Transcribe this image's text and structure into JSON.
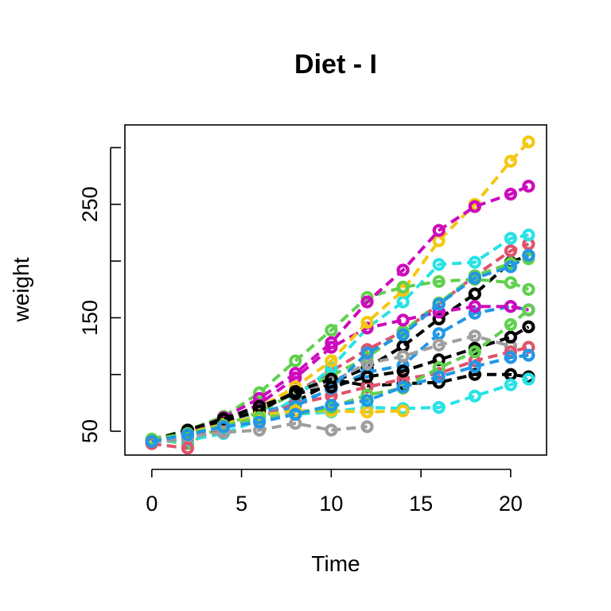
{
  "chart_data": {
    "type": "line",
    "title": "Diet - I",
    "xlabel": "Time",
    "ylabel": "weight",
    "xlim": [
      -1.5,
      22
    ],
    "ylim": [
      29,
      320
    ],
    "xticks": [
      0,
      5,
      10,
      15,
      20
    ],
    "yticks": [
      50,
      100,
      150,
      200,
      250,
      300
    ],
    "ytick_labels": [
      "50",
      "",
      "150",
      "",
      "250",
      ""
    ],
    "x": [
      0,
      2,
      4,
      6,
      8,
      10,
      12,
      14,
      16,
      18,
      20,
      21
    ],
    "grid": false,
    "legend": "none",
    "series": [
      {
        "color": "#000000",
        "values": [
          42,
          51,
          59,
          64,
          76,
          93,
          106,
          125,
          149,
          171,
          199,
          205
        ]
      },
      {
        "color": "#DF536B",
        "values": [
          40,
          49,
          58,
          72,
          84,
          103,
          122,
          138,
          162,
          187,
          209,
          215
        ]
      },
      {
        "color": "#61D04F",
        "values": [
          43,
          39,
          55,
          67,
          84,
          99,
          115,
          138,
          163,
          187,
          198,
          202
        ]
      },
      {
        "color": "#2297E6",
        "values": [
          42,
          49,
          56,
          67,
          74,
          87,
          102,
          108,
          136,
          154,
          160,
          157
        ]
      },
      {
        "color": "#28E2E5",
        "values": [
          41,
          42,
          48,
          60,
          79,
          106,
          141,
          164,
          197,
          199,
          220,
          223
        ]
      },
      {
        "color": "#CD0BBC",
        "values": [
          41,
          49,
          59,
          74,
          97,
          124,
          141,
          148,
          155,
          160,
          160,
          157
        ]
      },
      {
        "color": "#F5C710",
        "values": [
          41,
          49,
          57,
          71,
          89,
          112,
          146,
          174,
          218,
          250,
          288,
          305
        ]
      },
      {
        "color": "#9E9E9E",
        "values": [
          42,
          50,
          61,
          71,
          84,
          93,
          110,
          116,
          126,
          134,
          125,
          null
        ]
      },
      {
        "color": "#000000",
        "values": [
          42,
          51,
          59,
          68,
          85,
          96,
          90,
          92,
          93,
          100,
          100,
          98
        ]
      },
      {
        "color": "#DF536B",
        "values": [
          41,
          44,
          52,
          63,
          74,
          81,
          89,
          96,
          101,
          112,
          120,
          124
        ]
      },
      {
        "color": "#61D04F",
        "values": [
          43,
          51,
          63,
          84,
          112,
          139,
          168,
          177,
          182,
          184,
          181,
          175
        ]
      },
      {
        "color": "#2297E6",
        "values": [
          41,
          49,
          56,
          62,
          72,
          88,
          119,
          135,
          162,
          185,
          195,
          205
        ]
      },
      {
        "color": "#28E2E5",
        "values": [
          41,
          48,
          53,
          60,
          65,
          67,
          71,
          70,
          71,
          81,
          91,
          96
        ]
      },
      {
        "color": "#CD0BBC",
        "values": [
          41,
          49,
          62,
          79,
          101,
          128,
          164,
          192,
          227,
          248,
          259,
          266
        ]
      },
      {
        "color": "#F5C710",
        "values": [
          41,
          49,
          56,
          64,
          68,
          68,
          67,
          68,
          null,
          null,
          null,
          null
        ]
      },
      {
        "color": "#9E9E9E",
        "values": [
          41,
          45,
          49,
          51,
          57,
          51,
          54,
          null,
          null,
          null,
          null,
          null
        ]
      },
      {
        "color": "#000000",
        "values": [
          42,
          51,
          61,
          72,
          83,
          89,
          98,
          103,
          113,
          123,
          133,
          142
        ]
      },
      {
        "color": "#DF536B",
        "values": [
          39,
          35,
          null,
          null,
          null,
          null,
          null,
          null,
          null,
          null,
          null,
          null
        ]
      },
      {
        "color": "#61D04F",
        "values": [
          43,
          48,
          55,
          62,
          65,
          71,
          82,
          88,
          106,
          120,
          144,
          157
        ]
      },
      {
        "color": "#2297E6",
        "values": [
          41,
          47,
          54,
          58,
          65,
          73,
          77,
          89,
          98,
          107,
          115,
          117
        ]
      }
    ]
  }
}
